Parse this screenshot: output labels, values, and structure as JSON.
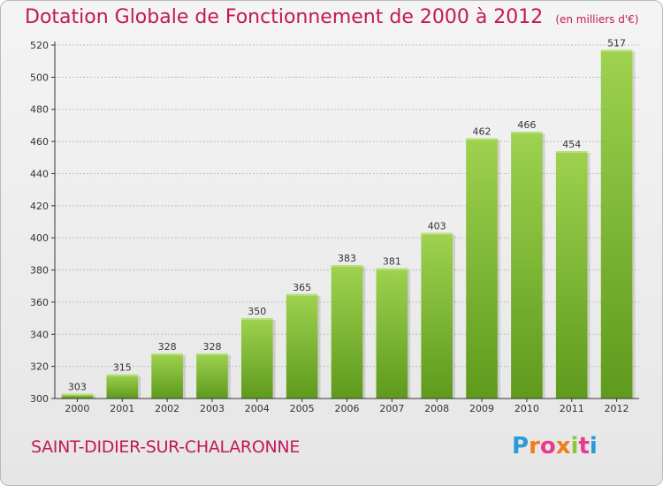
{
  "chart_data": {
    "type": "bar",
    "title": "Dotation Globale de Fonctionnement de 2000 à 2012",
    "unit": "(en milliers d'€)",
    "categories": [
      "2000",
      "2001",
      "2002",
      "2003",
      "2004",
      "2005",
      "2006",
      "2007",
      "2008",
      "2009",
      "2010",
      "2011",
      "2012"
    ],
    "values": [
      303,
      315,
      328,
      328,
      350,
      365,
      383,
      381,
      403,
      462,
      466,
      454,
      517
    ],
    "ylim": [
      300,
      520
    ],
    "yticks": [
      300,
      320,
      340,
      360,
      380,
      400,
      420,
      440,
      460,
      480,
      500,
      520
    ],
    "xlabel": "",
    "ylabel": "",
    "grid": true,
    "bar_color": "#8cc63f",
    "bar_color_dark": "#5e9a1c"
  },
  "footer": {
    "commune": "SAINT-DIDIER-SUR-CHALARONNE",
    "logo_text": "Proxiti",
    "logo_colors": [
      "#2a9bd8",
      "#f07c1a",
      "#e83a8c",
      "#f07c1a",
      "#8cc63f",
      "#e83a8c",
      "#2a9bd8"
    ]
  },
  "colors": {
    "title": "#c2185b",
    "axis": "#333333",
    "grid": "#bdbdbd"
  }
}
